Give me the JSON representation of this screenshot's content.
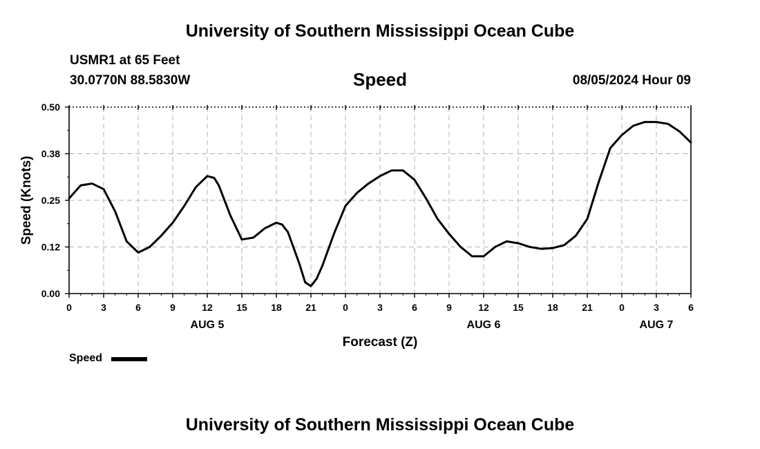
{
  "header": {
    "title": "University of Southern Mississippi Ocean Cube",
    "station": "USMR1 at 65 Feet",
    "coords": "30.0770N  88.5830W",
    "plot_title": "Speed",
    "timestamp": "08/05/2024 Hour 09"
  },
  "legend": {
    "label": "Speed",
    "color": "#000000"
  },
  "footer": {
    "title": "University of Southern Mississippi Ocean Cube"
  },
  "chart_data": {
    "type": "line",
    "title": "Speed",
    "xlabel": "Forecast (Z)",
    "ylabel": "Speed (Knots)",
    "ylim": [
      0,
      0.5
    ],
    "yticks": [
      "0.00",
      "0.12",
      "0.25",
      "0.38",
      "0.50"
    ],
    "xlim": [
      0,
      54
    ],
    "xticks": [
      "0",
      "3",
      "6",
      "9",
      "12",
      "15",
      "18",
      "21",
      "0",
      "3",
      "6",
      "9",
      "12",
      "15",
      "18",
      "21",
      "0",
      "3",
      "6"
    ],
    "day_labels": [
      {
        "label": "AUG 5",
        "hour": 12
      },
      {
        "label": "AUG 6",
        "hour": 36
      },
      {
        "label": "AUG 7",
        "hour": 51
      }
    ],
    "grid": true,
    "legend_position": "bottom-left",
    "series": [
      {
        "name": "Speed",
        "color": "#000000",
        "x": [
          0,
          1,
          2,
          3,
          4,
          5,
          6,
          7,
          8,
          9,
          10,
          11,
          12,
          12.6,
          13,
          14,
          15,
          16,
          17,
          18,
          18.5,
          19,
          20,
          20.5,
          21,
          21.5,
          22,
          23,
          24,
          25,
          26,
          27,
          28,
          29,
          30,
          31,
          32,
          33,
          34,
          35,
          36,
          37,
          38,
          39,
          40,
          41,
          42,
          43,
          44,
          45,
          46,
          47,
          48,
          49,
          50,
          51,
          52,
          53,
          54
        ],
        "y": [
          0.255,
          0.29,
          0.295,
          0.28,
          0.22,
          0.14,
          0.11,
          0.125,
          0.155,
          0.19,
          0.235,
          0.285,
          0.315,
          0.31,
          0.29,
          0.21,
          0.145,
          0.15,
          0.175,
          0.19,
          0.185,
          0.165,
          0.08,
          0.03,
          0.02,
          0.04,
          0.075,
          0.16,
          0.235,
          0.27,
          0.295,
          0.315,
          0.33,
          0.33,
          0.305,
          0.255,
          0.2,
          0.16,
          0.125,
          0.1,
          0.1,
          0.125,
          0.14,
          0.135,
          0.125,
          0.12,
          0.122,
          0.13,
          0.155,
          0.2,
          0.3,
          0.39,
          0.425,
          0.45,
          0.46,
          0.46,
          0.455,
          0.435,
          0.405
        ]
      }
    ]
  }
}
